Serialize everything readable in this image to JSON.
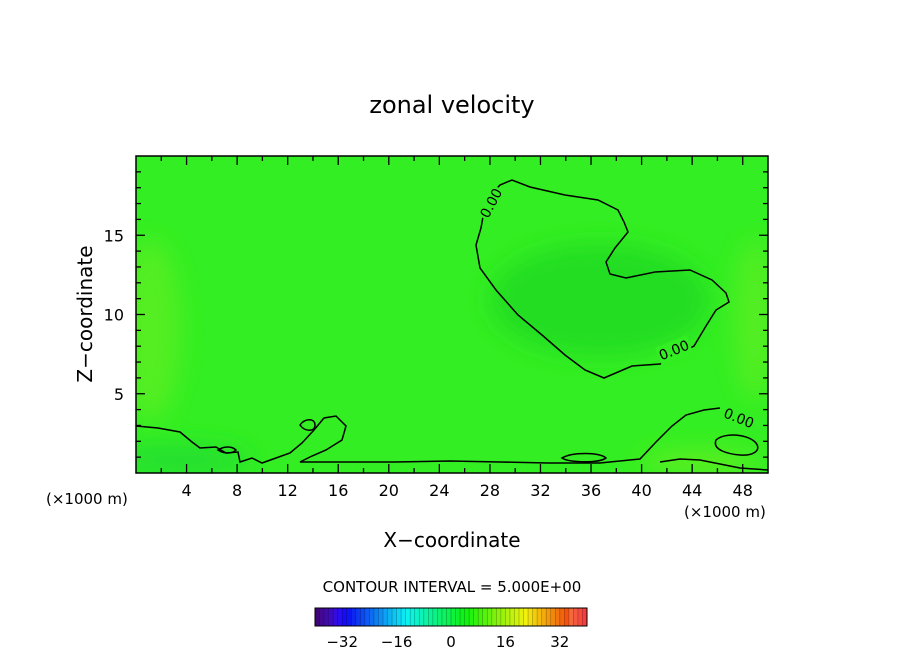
{
  "chart_data": {
    "type": "contour",
    "title": "zonal velocity",
    "xlabel": "X−coordinate",
    "ylabel": "Z−coordinate",
    "x_unit_left": "(×1000 m)",
    "x_unit_right": "(×1000 m)",
    "xlim": [
      0,
      50
    ],
    "ylim": [
      0,
      20
    ],
    "x_ticks": [
      4,
      8,
      12,
      16,
      20,
      24,
      28,
      32,
      36,
      40,
      44,
      48
    ],
    "x_tick_labels": [
      "4",
      "8",
      "12",
      "16",
      "20",
      "24",
      "28",
      "32",
      "36",
      "40",
      "44",
      "48"
    ],
    "y_ticks": [
      5,
      10,
      15
    ],
    "y_tick_labels": [
      "5",
      "10",
      "15"
    ],
    "background_fill_color": "#33ee22",
    "contour_level": 0.0,
    "contour_labels": [
      "0.00",
      "0.00",
      "0.00"
    ],
    "contour_interval_text": "CONTOUR INTERVAL = 5.000E+00",
    "colorbar": {
      "min": -40,
      "max": 40,
      "tick_values": [
        -32,
        -16,
        0,
        16,
        32
      ],
      "tick_labels": [
        "−32",
        "−16",
        "0",
        "16",
        "32"
      ]
    },
    "colors": {
      "field_main": "#33ee22",
      "field_dark": "#22dd22",
      "field_light": "#55ee22",
      "contour": "#000000"
    }
  }
}
